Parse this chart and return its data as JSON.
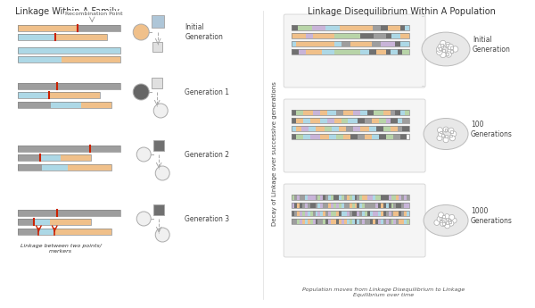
{
  "title_left": "Linkage Within A Family",
  "title_right": "Linkage Disequilibrium Within A Population",
  "ylabel_right": "Decay of Linkage over successive generations",
  "xlabel_right": "Population moves from Linkage Disequilibrium to Linkage\nEquilibrium over time",
  "annotation_left": "Linkage between two points/\nmarkers",
  "annotation_recomb": "Recombination Point",
  "gen_labels_left": [
    "Initial\nGeneration",
    "Generation 1",
    "Generation 2",
    "Generation 3"
  ],
  "gen_labels_right": [
    "Initial\nGeneration",
    "100\nGenerations",
    "1000\nGenerations"
  ],
  "colors": {
    "orange": "#F0C08A",
    "blue": "#ADD8E6",
    "gray": "#9E9E9E",
    "dark_gray": "#707070",
    "green": "#B8D4A8",
    "purple": "#C8B4D8",
    "red": "#CC2200",
    "light_gray": "#D0D0D0",
    "white": "#FFFFFF",
    "bg": "#FFFFFF",
    "box_bg": "#F0F0F0",
    "dark_gray2": "#606060"
  },
  "fig_width": 6.0,
  "fig_height": 3.45
}
